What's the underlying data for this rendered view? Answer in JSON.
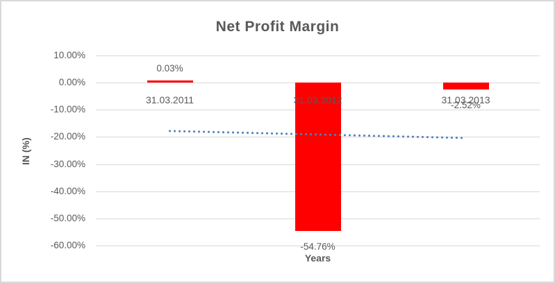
{
  "chart_data": {
    "type": "bar",
    "title": "Net Profit Margin",
    "xlabel": "Years",
    "ylabel": "IN (%)",
    "categories": [
      "31.03.2011",
      "31.03.2012",
      "31.03.2013"
    ],
    "values": [
      0.03,
      -54.76,
      -2.52
    ],
    "data_labels": [
      "0.03%",
      "-54.76%",
      "-2.52%"
    ],
    "y_ticks": [
      {
        "label": "10.00%",
        "value": 10
      },
      {
        "label": "0.00%",
        "value": 0
      },
      {
        "label": "-10.00%",
        "value": -10
      },
      {
        "label": "-20.00%",
        "value": -20
      },
      {
        "label": "-30.00%",
        "value": -30
      },
      {
        "label": "-40.00%",
        "value": -40
      },
      {
        "label": "-50.00%",
        "value": -50
      },
      {
        "label": "-60.00%",
        "value": -60
      }
    ],
    "ylim": [
      -60,
      10
    ],
    "grid": true,
    "legend": "none",
    "trendline": {
      "type": "linear",
      "style": "dotted",
      "start_value": -17.8,
      "end_value": -20.4
    },
    "colors": {
      "bar": "#ff0000",
      "trendline": "#4f81bd",
      "text": "#595959",
      "gridline": "#d9d9d9",
      "frame_border": "#d9d9d9",
      "background": "#ffffff"
    }
  }
}
